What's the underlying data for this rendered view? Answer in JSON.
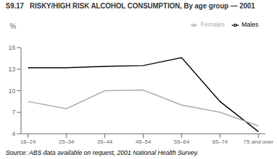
{
  "chart_data": {
    "type": "line",
    "title": "S9.17   RISKY/HIGH RISK ALCOHOL CONSUMPTION, By age group — 2001",
    "ylabel": "%",
    "annotations": [
      "Source: ABS data available on request, 2001 National Health Survey."
    ],
    "categories": [
      "18–24",
      "25–34",
      "35–44",
      "45–54",
      "55–64",
      "65–74",
      "75 and over"
    ],
    "series": [
      {
        "name": "Males",
        "color": "#000000",
        "values": [
          13.2,
          13.2,
          13.4,
          13.5,
          14.6,
          8.5,
          4.3
        ]
      },
      {
        "name": "Females",
        "color": "#aaaaaa",
        "values": [
          8.5,
          7.5,
          10.0,
          10.1,
          8.0,
          7.0,
          5.1
        ]
      }
    ],
    "ylim": [
      4,
      16
    ],
    "yticks": [
      4,
      7,
      10,
      13,
      16
    ],
    "grid": false,
    "legend": "top right"
  }
}
